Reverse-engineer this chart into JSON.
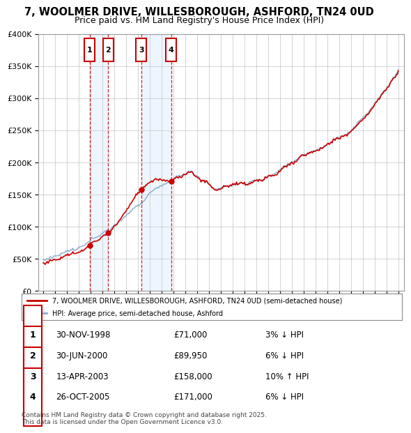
{
  "title": "7, WOOLMER DRIVE, WILLESBOROUGH, ASHFORD, TN24 0UD",
  "subtitle": "Price paid vs. HM Land Registry's House Price Index (HPI)",
  "sales": [
    {
      "label": "1",
      "date_str": "30-NOV-1998",
      "year": 1998.917,
      "price": 71000,
      "pct": "3%",
      "dir": "↓"
    },
    {
      "label": "2",
      "date_str": "30-JUN-2000",
      "year": 2000.5,
      "price": 89950,
      "pct": "6%",
      "dir": "↓"
    },
    {
      "label": "3",
      "date_str": "13-APR-2003",
      "year": 2003.283,
      "price": 158000,
      "pct": "10%",
      "dir": "↑"
    },
    {
      "label": "4",
      "date_str": "26-OCT-2005",
      "year": 2005.817,
      "price": 171000,
      "pct": "6%",
      "dir": "↓"
    }
  ],
  "legend_line1": "7, WOOLMER DRIVE, WILLESBOROUGH, ASHFORD, TN24 0UD (semi-detached house)",
  "legend_line2": "HPI: Average price, semi-detached house, Ashford",
  "footer1": "Contains HM Land Registry data © Crown copyright and database right 2025.",
  "footer2": "This data is licensed under the Open Government Licence v3.0.",
  "ylim": [
    0,
    400000
  ],
  "yticks": [
    0,
    50000,
    100000,
    150000,
    200000,
    250000,
    300000,
    350000,
    400000
  ],
  "red_color": "#cc0000",
  "blue_color": "#88aacc",
  "shade_color": "#ddeeff",
  "grid_color": "#cccccc"
}
